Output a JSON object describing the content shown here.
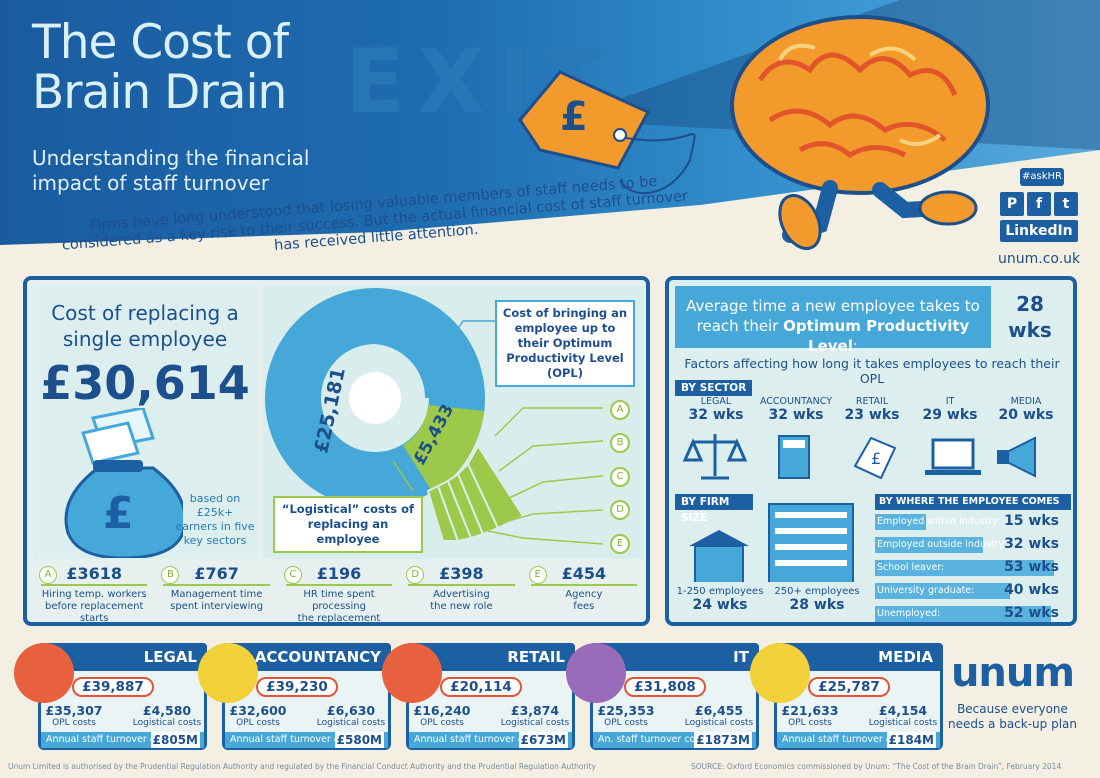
{
  "header": {
    "title_line1": "The Cost of",
    "title_line2": "Brain Drain",
    "subtitle_line1": "Understanding the financial",
    "subtitle_line2": "impact of staff turnover",
    "intro": "Firms have long understood that losing valuable members of staff needs to be considered as a key risk to their success. But the actual financial cost of staff turnover has received little attention.",
    "exit_sign": "EXIT",
    "hashtag": "#askHR",
    "linkedin": "LinkedIn",
    "url": "unum.co.uk"
  },
  "cost": {
    "heading_line1": "Cost of replacing a",
    "heading_line2": "single employee",
    "value": "£30,614",
    "note": "based on £25k+ earners in five key sectors",
    "opl_box": "Cost of bringing an employee up to their Optimum Productivity Level (OPL)",
    "logistical_box": "“Logistical” costs of replacing an employee",
    "donut_opl": "£25,181",
    "donut_log": "£5,433",
    "letters": [
      "A",
      "B",
      "C",
      "D",
      "E"
    ],
    "items": [
      {
        "letter": "A",
        "amount": "£3618",
        "desc_line1": "Hiring temp. workers",
        "desc_line2": "before replacement starts"
      },
      {
        "letter": "B",
        "amount": "£767",
        "desc_line1": "Management time",
        "desc_line2": "spent interviewing"
      },
      {
        "letter": "C",
        "amount": "£196",
        "desc_line1": "HR time spent processing",
        "desc_line2": "the replacement"
      },
      {
        "letter": "D",
        "amount": "£398",
        "desc_line1": "Advertising",
        "desc_line2": "the new role"
      },
      {
        "letter": "E",
        "amount": "£454",
        "desc_line1": "Agency",
        "desc_line2": "fees"
      }
    ]
  },
  "opl": {
    "heading_line1": "Average time a new employee takes to",
    "heading_line2": "reach their",
    "heading_bold": "Optimum Productivity Level",
    "value_line1": "28",
    "value_line2": "wks",
    "factors": "Factors affecting how long it takes employees to reach their OPL",
    "by_sector_label": "BY SECTOR",
    "sectors": [
      {
        "name": "LEGAL",
        "weeks": "32 wks",
        "icon": "scales-icon"
      },
      {
        "name": "ACCOUNTANCY",
        "weeks": "32 wks",
        "icon": "calculator-icon"
      },
      {
        "name": "RETAIL",
        "weeks": "23 wks",
        "icon": "price-tag-icon"
      },
      {
        "name": "IT",
        "weeks": "29 wks",
        "icon": "laptop-icon"
      },
      {
        "name": "MEDIA",
        "weeks": "20 wks",
        "icon": "megaphone-icon"
      }
    ],
    "by_firm_label": "BY FIRM SIZE",
    "firms": [
      {
        "name": "1-250 employees",
        "weeks": "24 wks"
      },
      {
        "name": "250+ employees",
        "weeks": "28 wks"
      }
    ],
    "by_where_label": "BY WHERE THE EMPLOYEE COMES FROM",
    "where": [
      {
        "label": "Employed within industry:",
        "weeks": "15 wks",
        "value": 15
      },
      {
        "label": "Employed outside industry:",
        "weeks": "32 wks",
        "value": 32
      },
      {
        "label": "School leaver:",
        "weeks": "53 wks",
        "value": 53
      },
      {
        "label": "University graduate:",
        "weeks": "40 wks",
        "value": 40
      },
      {
        "label": "Unemployed:",
        "weeks": "52 wks",
        "value": 52
      }
    ]
  },
  "cards": [
    {
      "name": "LEGAL",
      "total": "£39,887",
      "opl": "£35,307",
      "log": "£4,580",
      "opl_sub": "OPL costs",
      "log_sub": "Logistical costs",
      "annual_label": "Annual staff turnover cost:",
      "annual": "£805M",
      "color": "#e8613f",
      "icon": "scales-icon"
    },
    {
      "name": "ACCOUNTANCY",
      "total": "£39,230",
      "opl": "£32,600",
      "log": "£6,630",
      "opl_sub": "OPL costs",
      "log_sub": "Logistical costs",
      "annual_label": "Annual staff turnover cost:",
      "annual": "£580M",
      "color": "#f2d13a",
      "icon": "calculator-icon"
    },
    {
      "name": "RETAIL",
      "total": "£20,114",
      "opl": "£16,240",
      "log": "£3,874",
      "opl_sub": "OPL costs",
      "log_sub": "Logistical costs",
      "annual_label": "Annual staff turnover cost:",
      "annual": "£673M",
      "color": "#e8613f",
      "icon": "price-tag-icon"
    },
    {
      "name": "IT",
      "total": "£31,808",
      "opl": "£25,353",
      "log": "£6,455",
      "opl_sub": "OPL costs",
      "log_sub": "Logistical costs",
      "annual_label": "An. staff turnover cost:",
      "annual": "£1873M",
      "color": "#9a6bb8",
      "icon": "laptop-icon"
    },
    {
      "name": "MEDIA",
      "total": "£25,787",
      "opl": "£21,633",
      "log": "£4,154",
      "opl_sub": "OPL costs",
      "log_sub": "Logistical costs",
      "annual_label": "Annual staff turnover cost:",
      "annual": "£184M",
      "color": "#f2d13a",
      "icon": "megaphone-icon"
    }
  ],
  "brand": {
    "logo": "unum",
    "tagline_line1": "Because everyone",
    "tagline_line2": "needs a back-up plan"
  },
  "footer": {
    "legal": "Unum Limited is authorised by the Prudential Regulation Authority and regulated by the Financial Conduct Authority and the Prudential Regulation Authority",
    "source": "SOURCE: Oxford Economics commissioned by Unum: “The Cost of the Brain Drain”, February 2014"
  },
  "colors": {
    "navy": "#1d5fa3",
    "sky": "#46a8d8",
    "green": "#9cc94a",
    "orange": "#e8613f",
    "cream": "#f3efe2"
  }
}
